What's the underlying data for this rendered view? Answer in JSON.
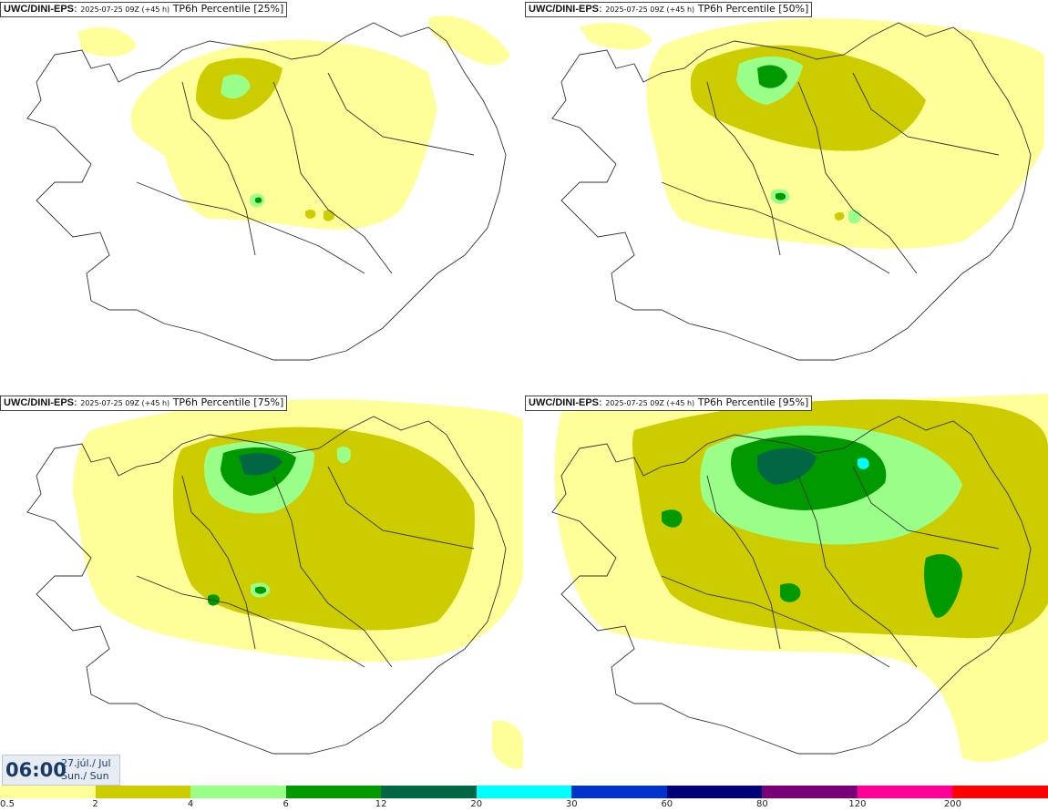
{
  "panels": [
    {
      "model": "UWC/DINI-EPS",
      "run": "2025-07-25 09Z (+45 h)",
      "product": "TP6h Percentile [25%]"
    },
    {
      "model": "UWC/DINI-EPS",
      "run": "2025-07-25 09Z (+45 h)",
      "product": "TP6h Percentile [50%]"
    },
    {
      "model": "UWC/DINI-EPS",
      "run": "2025-07-25 09Z (+45 h)",
      "product": "TP6h Percentile [75%]"
    },
    {
      "model": "UWC/DINI-EPS",
      "run": "2025-07-25 09Z (+45 h)",
      "product": "TP6h Percentile [95%]"
    }
  ],
  "valid_time": {
    "time": "06:00",
    "date": "27.júl./ Jul",
    "day": "Sun./ Sun"
  },
  "legend": {
    "ticks": [
      "0.5",
      "2",
      "4",
      "6",
      "12",
      "20",
      "30",
      "60",
      "80",
      "120",
      "200"
    ],
    "colors": [
      "#ffff99",
      "#cccc00",
      "#99ff88",
      "#009900",
      "#006644",
      "#00ffff",
      "#0033cc",
      "#000077",
      "#770077",
      "#ff0099",
      "#ff0000"
    ]
  },
  "palette": {
    "light_yellow": "#ffff99",
    "olive": "#cccc00",
    "light_green": "#99ff88",
    "green": "#009900",
    "dark_green": "#006644",
    "cyan": "#00ffff",
    "coast": "#333333"
  }
}
